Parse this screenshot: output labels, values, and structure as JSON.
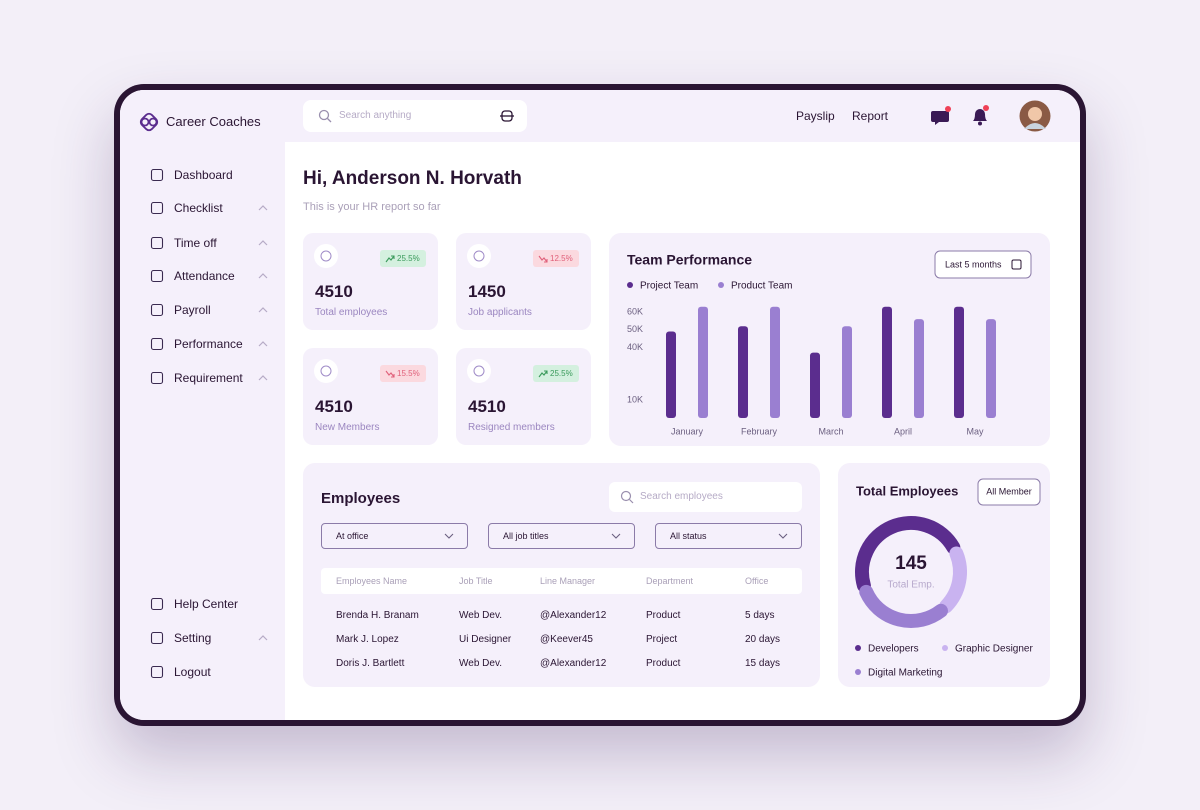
{
  "brand": "Career Coaches",
  "search_placeholder": "Search anything",
  "top_links": [
    "Payslip",
    "Report"
  ],
  "nav": [
    "Dashboard",
    "Checklist",
    "Time off",
    "Attendance",
    "Payroll",
    "Performance",
    "Requirement"
  ],
  "nav_bottom": [
    "Help Center",
    "Setting",
    "Logout"
  ],
  "greeting": "Hi, Anderson N. Horvath",
  "subtitle": "This is your HR report so far",
  "stats": [
    {
      "value": "4510",
      "label": "Total employees",
      "change": "25.5%",
      "trend": "up"
    },
    {
      "value": "1450",
      "label": "Job applicants",
      "change": "12.5%",
      "trend": "down"
    },
    {
      "value": "4510",
      "label": "New Members",
      "change": "15.5%",
      "trend": "down"
    },
    {
      "value": "4510",
      "label": "Resigned members",
      "change": "25.5%",
      "trend": "up"
    }
  ],
  "team_performance": {
    "type": "bar",
    "title": "Team Performance",
    "filter": "Last 5 months",
    "categories": [
      "January",
      "February",
      "March",
      "April",
      "May"
    ],
    "series": [
      {
        "name": "Project Team",
        "color": "#5b2d8e",
        "values": [
          49000,
          52000,
          37000,
          63000,
          63000
        ]
      },
      {
        "name": "Product Team",
        "color": "#9a7fd1",
        "values": [
          63000,
          63000,
          52000,
          56000,
          56000
        ]
      }
    ],
    "ylim": [
      0,
      64000
    ],
    "yticks": [
      {
        "value": 10000,
        "label": "10K"
      },
      {
        "value": 40000,
        "label": "40K"
      },
      {
        "value": 50000,
        "label": "50K"
      },
      {
        "value": 60000,
        "label": "60K"
      }
    ]
  },
  "employees": {
    "title": "Employees",
    "search_placeholder": "Search employees",
    "filters": [
      "At office",
      "All job titles",
      "All status"
    ],
    "columns": [
      "Employees Name",
      "Job Title",
      "Line Manager",
      "Department",
      "Office"
    ],
    "rows": [
      [
        "Brenda H. Branam",
        "Web Dev.",
        "@Alexander12",
        "Product",
        "5 days"
      ],
      [
        "Mark J. Lopez",
        "Ui Designer",
        "@Keever45",
        "Project",
        "20 days"
      ],
      [
        "Doris J. Bartlett",
        "Web Dev.",
        "@Alexander12",
        "Product",
        "15 days"
      ]
    ]
  },
  "total_employees": {
    "type": "donut",
    "title": "Total Employees",
    "button": "All Member",
    "total": 145,
    "total_label": "Total Emp.",
    "categories": [
      "Developers",
      "Graphic Designer",
      "Digital Marketing"
    ],
    "values": [
      70,
      30,
      45
    ],
    "colors": [
      "#5b2d8e",
      "#c9b3f0",
      "#9a7fd1"
    ]
  }
}
